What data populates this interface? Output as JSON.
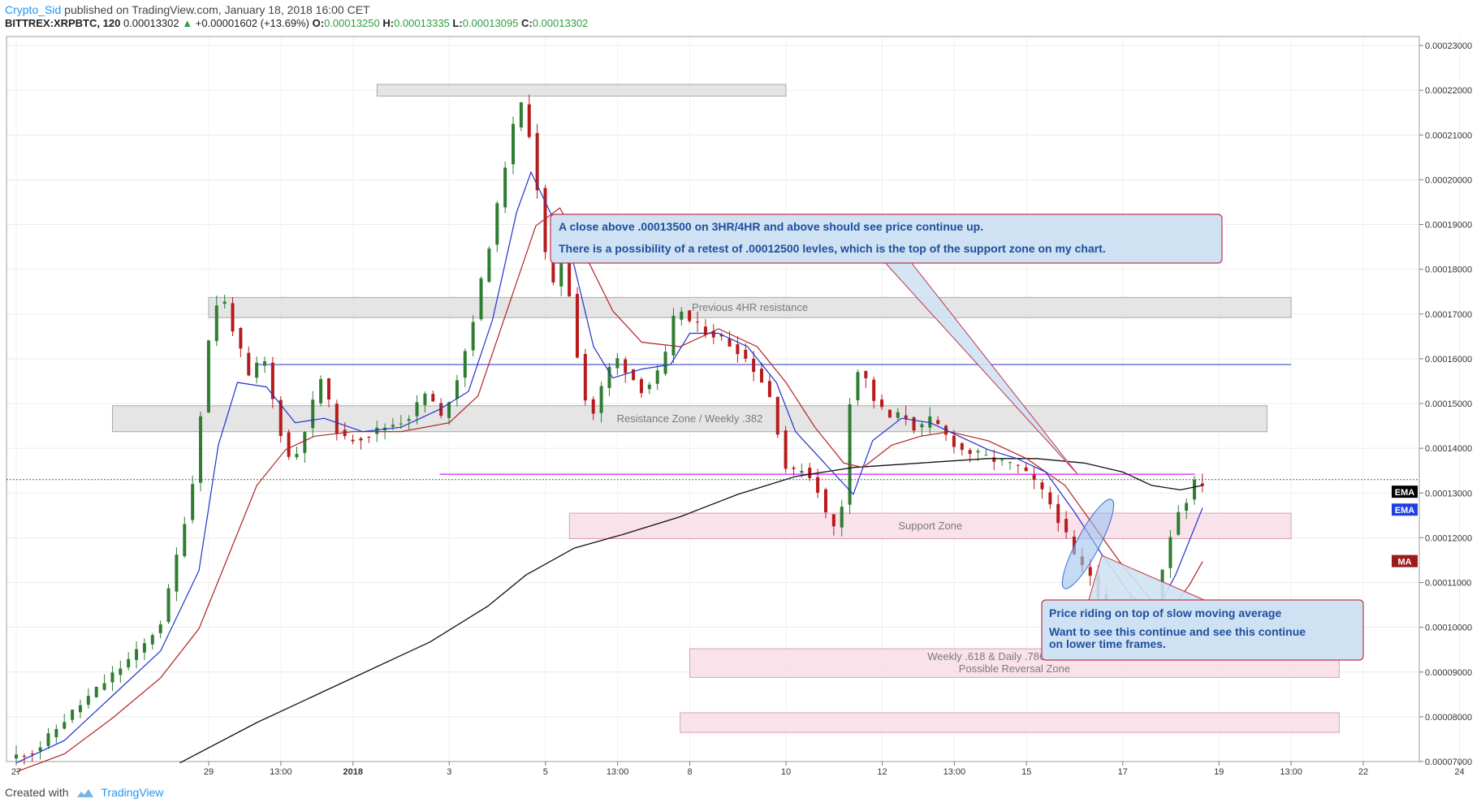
{
  "header": {
    "author": "Crypto_Sid",
    "published_text": "published on TradingView.com, January 18, 2018 16:00 CET",
    "symbol": "BITTREX:XRPBTC, 120",
    "last": "0.00013302",
    "change": "+0.00001602 (+13.69%)",
    "open_label": "O:",
    "open": "0.00013250",
    "high_label": "H:",
    "high": "0.00013335",
    "low_label": "L:",
    "low": "0.00013095",
    "close_label": "C:",
    "close": "0.00013302"
  },
  "footer": {
    "created_with": "Created with",
    "brand": "TradingView"
  },
  "colors": {
    "up": "#2e7d32",
    "down": "#b71c1c",
    "ema_fast": "#2233cc",
    "ema_slow": "#b22222",
    "ma_long": "#111111",
    "zone_gray": "#dcdcdc",
    "zone_pink": "#f8dde6",
    "callout_fill": "#cfe2f3",
    "callout_border": "#c2334d",
    "callout_text": "#1f4e9c"
  },
  "chart_data": {
    "type": "candlestick",
    "y_axis": {
      "min": 7e-05,
      "max": 0.000232,
      "ticks": [
        "0.00007000",
        "0.00008000",
        "0.00009000",
        "0.00010000",
        "0.00011000",
        "0.00012000",
        "0.00013000",
        "0.00014000",
        "0.00015000",
        "0.00016000",
        "0.00017000",
        "0.00018000",
        "0.00019000",
        "0.00020000",
        "0.00021000",
        "0.00022000",
        "0.00023000"
      ]
    },
    "x_axis": {
      "ticks": [
        {
          "label": "27",
          "t": 0.0
        },
        {
          "label": "29",
          "t": 2.0
        },
        {
          "label": "13:00",
          "t": 2.75
        },
        {
          "label": "2018",
          "t": 3.5
        },
        {
          "label": "3",
          "t": 4.5
        },
        {
          "label": "5",
          "t": 5.5
        },
        {
          "label": "13:00",
          "t": 6.25
        },
        {
          "label": "8",
          "t": 7.0
        },
        {
          "label": "10",
          "t": 8.0
        },
        {
          "label": "12",
          "t": 9.0
        },
        {
          "label": "13:00",
          "t": 9.75
        },
        {
          "label": "15",
          "t": 10.5
        },
        {
          "label": "17",
          "t": 11.5
        },
        {
          "label": "19",
          "t": 12.5
        },
        {
          "label": "13:00",
          "t": 13.25
        },
        {
          "label": "22",
          "t": 14.0
        },
        {
          "label": "24",
          "t": 15.0
        }
      ]
    },
    "price_path": [
      [
        0.0,
        7.07e-05
      ],
      [
        0.3,
        7.27e-05
      ],
      [
        0.6,
        7.97e-05
      ],
      [
        0.9,
        8.57e-05
      ],
      [
        1.15,
        9.07e-05
      ],
      [
        1.4,
        9.57e-05
      ],
      [
        1.6,
        0.0001017
      ],
      [
        1.8,
        0.0001207
      ],
      [
        1.95,
        0.0001357
      ],
      [
        2.05,
        0.0001607
      ],
      [
        2.2,
        0.0001757
      ],
      [
        2.35,
        0.0001657
      ],
      [
        2.5,
        0.0001557
      ],
      [
        2.65,
        0.0001607
      ],
      [
        2.8,
        0.0001457
      ],
      [
        2.95,
        0.0001357
      ],
      [
        3.1,
        0.0001457
      ],
      [
        3.25,
        0.0001557
      ],
      [
        3.45,
        0.0001417
      ],
      [
        3.7,
        0.0001427
      ],
      [
        3.9,
        0.0001447
      ],
      [
        4.15,
        0.0001467
      ],
      [
        4.35,
        0.0001527
      ],
      [
        4.5,
        0.0001467
      ],
      [
        4.65,
        0.0001547
      ],
      [
        4.8,
        0.0001657
      ],
      [
        4.95,
        0.0001807
      ],
      [
        5.1,
        0.0001957
      ],
      [
        5.2,
        0.0002077
      ],
      [
        5.32,
        0.0002177
      ],
      [
        5.45,
        0.0002077
      ],
      [
        5.55,
        0.0001877
      ],
      [
        5.65,
        0.0001737
      ],
      [
        5.75,
        0.0001907
      ],
      [
        5.85,
        0.0001707
      ],
      [
        5.95,
        0.0001557
      ],
      [
        6.05,
        0.0001457
      ],
      [
        6.15,
        0.0001527
      ],
      [
        6.3,
        0.0001607
      ],
      [
        6.45,
        0.0001567
      ],
      [
        6.6,
        0.0001527
      ],
      [
        6.75,
        0.0001567
      ],
      [
        6.85,
        0.0001617
      ],
      [
        6.95,
        0.0001727
      ],
      [
        7.05,
        0.0001687
      ],
      [
        7.2,
        0.0001667
      ],
      [
        7.4,
        0.0001647
      ],
      [
        7.6,
        0.0001617
      ],
      [
        7.75,
        0.0001577
      ],
      [
        7.9,
        0.0001527
      ],
      [
        8.0,
        0.0001437
      ],
      [
        8.1,
        0.0001337
      ],
      [
        8.25,
        0.0001357
      ],
      [
        8.4,
        0.0001317
      ],
      [
        8.55,
        0.0001217
      ],
      [
        8.65,
        0.0001237
      ],
      [
        8.75,
        0.0001517
      ],
      [
        8.85,
        0.0001587
      ],
      [
        9.0,
        0.0001507
      ],
      [
        9.15,
        0.0001467
      ],
      [
        9.3,
        0.0001477
      ],
      [
        9.45,
        0.0001437
      ],
      [
        9.6,
        0.0001467
      ],
      [
        9.75,
        0.0001427
      ],
      [
        9.9,
        0.0001397
      ],
      [
        10.05,
        0.0001387
      ],
      [
        10.2,
        0.0001377
      ],
      [
        10.35,
        0.0001367
      ],
      [
        10.5,
        0.0001357
      ],
      [
        10.65,
        0.0001327
      ],
      [
        10.8,
        0.0001287
      ],
      [
        10.95,
        0.0001227
      ],
      [
        11.1,
        0.0001147
      ],
      [
        11.25,
        0.0001117
      ],
      [
        11.4,
        0.0001037
      ],
      [
        11.55,
        0.0001057
      ],
      [
        11.7,
        0.0001017
      ],
      [
        11.82,
        9.97e-05
      ],
      [
        11.95,
        0.0001087
      ],
      [
        12.05,
        0.0001187
      ],
      [
        12.15,
        0.0001257
      ],
      [
        12.25,
        0.0001287
      ],
      [
        12.33,
        0.0001322
      ]
    ],
    "ema_fast_path": [
      [
        0.0,
        6.97e-05
      ],
      [
        0.5,
        7.47e-05
      ],
      [
        1.0,
        8.47e-05
      ],
      [
        1.5,
        9.47e-05
      ],
      [
        1.9,
        0.0001127
      ],
      [
        2.1,
        0.0001407
      ],
      [
        2.3,
        0.0001547
      ],
      [
        2.6,
        0.0001537
      ],
      [
        2.9,
        0.0001457
      ],
      [
        3.2,
        0.0001467
      ],
      [
        3.6,
        0.0001437
      ],
      [
        4.0,
        0.0001447
      ],
      [
        4.4,
        0.0001487
      ],
      [
        4.7,
        0.0001527
      ],
      [
        4.95,
        0.0001687
      ],
      [
        5.2,
        0.0001927
      ],
      [
        5.35,
        0.0002017
      ],
      [
        5.55,
        0.0001927
      ],
      [
        5.8,
        0.0001807
      ],
      [
        6.0,
        0.0001627
      ],
      [
        6.2,
        0.0001557
      ],
      [
        6.5,
        0.0001577
      ],
      [
        6.8,
        0.0001587
      ],
      [
        7.0,
        0.0001657
      ],
      [
        7.3,
        0.0001657
      ],
      [
        7.6,
        0.0001627
      ],
      [
        7.9,
        0.0001547
      ],
      [
        8.1,
        0.0001437
      ],
      [
        8.4,
        0.0001367
      ],
      [
        8.7,
        0.0001297
      ],
      [
        8.9,
        0.0001417
      ],
      [
        9.2,
        0.0001467
      ],
      [
        9.5,
        0.0001457
      ],
      [
        9.8,
        0.0001427
      ],
      [
        10.1,
        0.0001397
      ],
      [
        10.4,
        0.0001377
      ],
      [
        10.7,
        0.0001347
      ],
      [
        11.0,
        0.0001257
      ],
      [
        11.3,
        0.0001157
      ],
      [
        11.6,
        0.0001067
      ],
      [
        11.85,
        0.0001037
      ],
      [
        12.05,
        0.0001117
      ],
      [
        12.33,
        0.0001267
      ]
    ],
    "ema_slow_path": [
      [
        0.0,
        6.77e-05
      ],
      [
        0.5,
        7.17e-05
      ],
      [
        1.0,
        7.97e-05
      ],
      [
        1.5,
        8.87e-05
      ],
      [
        1.9,
        9.97e-05
      ],
      [
        2.2,
        0.0001157
      ],
      [
        2.5,
        0.0001317
      ],
      [
        2.8,
        0.0001397
      ],
      [
        3.1,
        0.0001427
      ],
      [
        3.5,
        0.0001437
      ],
      [
        4.0,
        0.0001437
      ],
      [
        4.5,
        0.0001457
      ],
      [
        4.8,
        0.0001517
      ],
      [
        5.1,
        0.0001707
      ],
      [
        5.4,
        0.0001897
      ],
      [
        5.65,
        0.0001937
      ],
      [
        5.9,
        0.0001837
      ],
      [
        6.2,
        0.0001707
      ],
      [
        6.5,
        0.0001637
      ],
      [
        6.9,
        0.0001627
      ],
      [
        7.3,
        0.0001667
      ],
      [
        7.7,
        0.0001627
      ],
      [
        8.0,
        0.0001547
      ],
      [
        8.3,
        0.0001447
      ],
      [
        8.6,
        0.0001367
      ],
      [
        8.8,
        0.0001357
      ],
      [
        9.1,
        0.0001407
      ],
      [
        9.4,
        0.0001427
      ],
      [
        9.7,
        0.0001437
      ],
      [
        10.1,
        0.0001417
      ],
      [
        10.5,
        0.0001377
      ],
      [
        10.9,
        0.0001317
      ],
      [
        11.2,
        0.0001227
      ],
      [
        11.5,
        0.0001137
      ],
      [
        11.85,
        0.0001047
      ],
      [
        12.0,
        0.0001037
      ],
      [
        12.2,
        0.0001097
      ],
      [
        12.33,
        0.0001147
      ]
    ],
    "ma_long_path": [
      [
        1.7,
        6.97e-05
      ],
      [
        2.5,
        7.87e-05
      ],
      [
        3.4,
        8.77e-05
      ],
      [
        4.3,
        9.67e-05
      ],
      [
        4.9,
        0.0001047
      ],
      [
        5.3,
        0.0001117
      ],
      [
        5.8,
        0.0001177
      ],
      [
        6.3,
        0.0001207
      ],
      [
        6.9,
        0.0001247
      ],
      [
        7.5,
        0.0001297
      ],
      [
        8.1,
        0.0001337
      ],
      [
        8.7,
        0.0001357
      ],
      [
        9.4,
        0.0001367
      ],
      [
        10.1,
        0.0001377
      ],
      [
        10.6,
        0.0001377
      ],
      [
        11.1,
        0.0001367
      ],
      [
        11.5,
        0.0001347
      ],
      [
        11.8,
        0.0001317
      ],
      [
        12.1,
        0.0001307
      ],
      [
        12.33,
        0.0001317
      ]
    ],
    "zones": [
      {
        "label": "",
        "t0": 3.75,
        "t1": 8.0,
        "y0": 0.0002187,
        "y1": 0.0002213,
        "style": "gray"
      },
      {
        "label": "Previous 4HR resistance",
        "t0": 2.0,
        "t1": 13.25,
        "y0": 0.0001692,
        "y1": 0.0001737,
        "style": "gray"
      },
      {
        "label": "Resistance Zone /  Weekly .382",
        "t0": 1.0,
        "t1": 13.0,
        "y0": 0.0001437,
        "y1": 0.0001495,
        "style": "gray"
      },
      {
        "label": "Support Zone",
        "t0": 5.75,
        "t1": 13.25,
        "y0": 0.0001198,
        "y1": 0.0001255,
        "style": "pink"
      },
      {
        "label": "Weekly .618 & Daily .786 Confluence\nPossible Reversal Zone",
        "t0": 7.0,
        "t1": 13.75,
        "y0": 8.88e-05,
        "y1": 9.52e-05,
        "style": "pink"
      },
      {
        "label": "",
        "t0": 6.9,
        "t1": 13.75,
        "y0": 7.65e-05,
        "y1": 8.09e-05,
        "style": "pink"
      }
    ],
    "lines": [
      {
        "name": "resistance-line-blue",
        "t0": 2.5,
        "t1": 13.25,
        "y": 0.0001587,
        "color": "#2233cc"
      },
      {
        "name": "pink-line",
        "t0": 4.4,
        "t1": 12.25,
        "y": 0.0001342,
        "color": "#e040fb"
      },
      {
        "name": "last-price-line",
        "t0": -0.5,
        "t1": 16.0,
        "y": 0.000133,
        "color": "#2e7d32"
      }
    ],
    "annotations": [
      {
        "name": "callout-top",
        "lines": [
          "A close above .00013500 on 3HR/4HR and above should see price continue up.",
          "There is a possibility of a retest of .00012500 levles, which is the top of the support zone on my chart."
        ]
      },
      {
        "name": "callout-bottom",
        "lines": [
          "Price riding on top of slow moving average",
          "Want to see this continue and see this continue",
          "on lower time frames."
        ]
      }
    ],
    "indicator_labels": [
      {
        "text": "EMA",
        "bg": "#000000",
        "y": 0.0001302
      },
      {
        "text": "EMA",
        "bg": "#1f3fe0",
        "y": 0.0001262
      },
      {
        "text": "MA",
        "bg": "#9b1b1b",
        "y": 0.0001147
      }
    ]
  }
}
